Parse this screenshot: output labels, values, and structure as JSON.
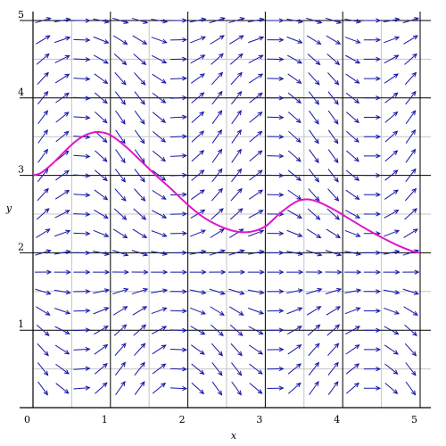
{
  "chart_data": {
    "type": "line",
    "title": "",
    "xlabel": "x",
    "ylabel": "y",
    "xlim": [
      0,
      5
    ],
    "ylim": [
      0,
      5
    ],
    "x_ticks": [
      0,
      1,
      2,
      3,
      4,
      5
    ],
    "y_ticks": [
      1,
      2,
      3,
      4,
      5
    ],
    "x_tick_labels": [
      "0",
      "1",
      "2",
      "3",
      "4",
      "5"
    ],
    "y_tick_labels": [
      "1",
      "2",
      "3",
      "4",
      "5"
    ],
    "grid": true,
    "minor_grid_step": 0.5,
    "direction_field": {
      "x_step": 0.25,
      "y_step": 0.25,
      "slope_amplitude": 1.5,
      "slope_x_frequency": 2.5,
      "slope_y_frequency": 0.9,
      "slope_phase": -1.2
    },
    "series": [
      {
        "x": [
          0,
          0.1,
          0.25,
          0.4,
          0.55,
          0.7,
          0.85,
          1.0,
          1.2,
          1.4,
          1.6,
          1.8,
          2.0,
          2.2,
          2.4,
          2.6,
          2.8,
          3.0,
          3.2,
          3.4,
          3.55,
          3.7,
          3.9,
          4.1,
          4.3,
          4.5,
          4.7,
          4.9,
          5.0
        ],
        "y": [
          3.0,
          3.03,
          3.15,
          3.3,
          3.44,
          3.53,
          3.56,
          3.52,
          3.37,
          3.18,
          2.99,
          2.81,
          2.62,
          2.46,
          2.35,
          2.28,
          2.27,
          2.34,
          2.52,
          2.66,
          2.69,
          2.65,
          2.55,
          2.43,
          2.31,
          2.2,
          2.1,
          2.02,
          2.0
        ]
      }
    ]
  },
  "colors": {
    "arrow": "#1515a8",
    "curve": "#e015c8",
    "major_grid": "#000000",
    "minor_grid": "#c4c4c4",
    "background": "#ffffff"
  }
}
